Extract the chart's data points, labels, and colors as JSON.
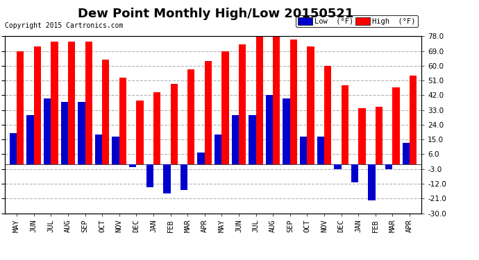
{
  "title": "Dew Point Monthly High/Low 20150521",
  "copyright": "Copyright 2015 Cartronics.com",
  "categories": [
    "MAY",
    "JUN",
    "JUL",
    "AUG",
    "SEP",
    "OCT",
    "NOV",
    "DEC",
    "JAN",
    "FEB",
    "MAR",
    "APR",
    "MAY",
    "JUN",
    "JUL",
    "AUG",
    "SEP",
    "OCT",
    "NOV",
    "DEC",
    "JAN",
    "FEB",
    "MAR",
    "APR"
  ],
  "high_values": [
    69,
    72,
    75,
    75,
    75,
    64,
    53,
    39,
    44,
    49,
    58,
    63,
    69,
    73,
    78,
    78,
    76,
    72,
    60,
    48,
    34,
    35,
    47,
    54
  ],
  "low_values": [
    19,
    30,
    40,
    38,
    38,
    18,
    17,
    -2,
    -14,
    -18,
    -16,
    7,
    18,
    30,
    30,
    42,
    40,
    17,
    17,
    -3,
    -11,
    -22,
    -3,
    13
  ],
  "ylim": [
    -30,
    78
  ],
  "yticks": [
    -30,
    -21,
    -12,
    -3,
    6,
    15,
    24,
    33,
    42,
    51,
    60,
    69,
    78
  ],
  "bar_width": 0.42,
  "high_color": "#ff0000",
  "low_color": "#0000cc",
  "bg_color": "#ffffff",
  "grid_color": "#b0b0b0",
  "title_fontsize": 13,
  "tick_fontsize": 7.5,
  "copyright_fontsize": 7
}
